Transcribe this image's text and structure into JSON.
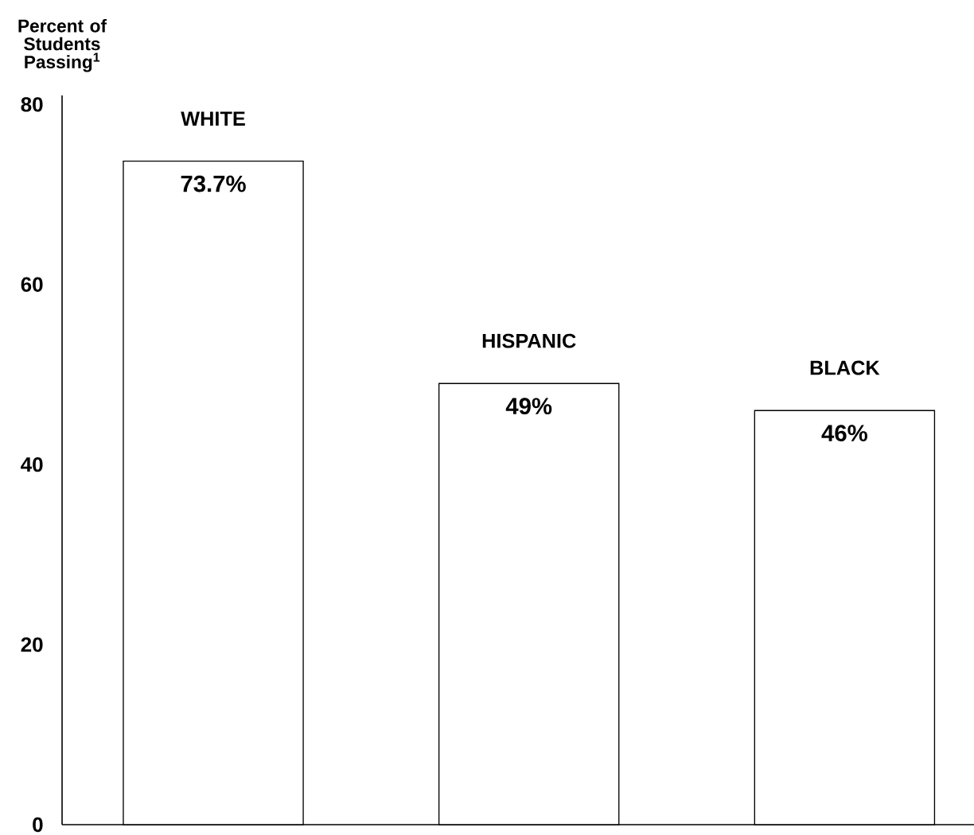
{
  "chart_data": {
    "type": "bar",
    "ylabel": "Percent of Students Passing$^{1}$",
    "categories": [
      "WHITE",
      "HISPANIC",
      "BLACK"
    ],
    "values": [
      73.7,
      49,
      46
    ],
    "value_labels": [
      "73.7%",
      "49%",
      "46%"
    ],
    "color": "#ffffff",
    "ylim": [
      0,
      81
    ],
    "yticks": [
      0,
      20,
      40,
      60,
      80
    ]
  }
}
